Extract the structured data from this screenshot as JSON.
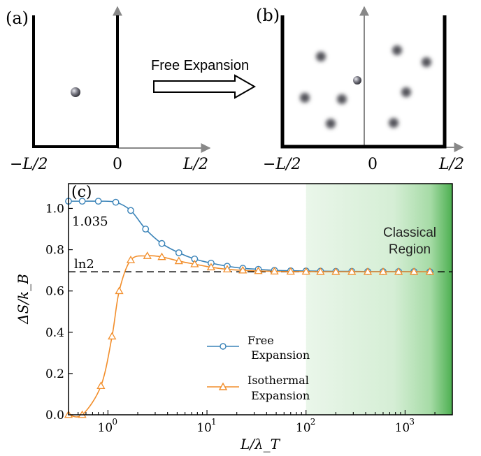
{
  "panel_a": {
    "label": "(a)",
    "tick_left": "−L/2",
    "tick_zero": "0",
    "tick_right": "L/2"
  },
  "arrow": {
    "label": "Free Expansion"
  },
  "panel_b": {
    "label": "(b)",
    "tick_left": "−L/2",
    "tick_zero": "0",
    "tick_right": "L/2"
  },
  "colors": {
    "free": "#3a83b8",
    "isothermal": "#f28e2b",
    "region_green": "#4caf50",
    "ball": "#6c6c74"
  },
  "chart_data": {
    "type": "line",
    "panel_label": "(c)",
    "xlabel": "L/λ_T",
    "ylabel": "ΔS/k_B",
    "x_scale": "log",
    "xlim": [
      0.4,
      3000
    ],
    "ylim": [
      0,
      1.12
    ],
    "x_ticks": [
      {
        "value": 1,
        "label": "10",
        "exp": "0"
      },
      {
        "value": 10,
        "label": "10",
        "exp": "1"
      },
      {
        "value": 100,
        "label": "10",
        "exp": "2"
      },
      {
        "value": 1000,
        "label": "10",
        "exp": "3"
      }
    ],
    "y_ticks": [
      {
        "value": 0,
        "label": "0.0"
      },
      {
        "value": 0.2,
        "label": "0.2"
      },
      {
        "value": 0.4,
        "label": "0.4"
      },
      {
        "value": 0.6,
        "label": "0.6"
      },
      {
        "value": 0.8,
        "label": "0.8"
      },
      {
        "value": 1.0,
        "label": "1.0"
      }
    ],
    "reference_line": {
      "y": 0.693,
      "label": "ln2"
    },
    "annotation": {
      "text": "1.035",
      "x": 0.42,
      "y": 0.95
    },
    "shaded_region": {
      "label_line1": "Classical",
      "label_line2": "Region",
      "x_start": 100,
      "x_end": 3000
    },
    "legend_position": "lower-center",
    "series": [
      {
        "name": "Free\n Expansion",
        "legend_line1": "Free",
        "legend_line2": " Expansion",
        "marker": "circle",
        "color": "#3a83b8",
        "points": [
          [
            0.4,
            1.035
          ],
          [
            0.55,
            1.035
          ],
          [
            0.8,
            1.035
          ],
          [
            1.2,
            1.03
          ],
          [
            1.7,
            0.99
          ],
          [
            2.4,
            0.9
          ],
          [
            3.5,
            0.83
          ],
          [
            5.2,
            0.785
          ],
          [
            7.5,
            0.755
          ],
          [
            11,
            0.735
          ],
          [
            16,
            0.72
          ],
          [
            23,
            0.71
          ],
          [
            33,
            0.705
          ],
          [
            48,
            0.7
          ],
          [
            70,
            0.698
          ],
          [
            100,
            0.697
          ],
          [
            140,
            0.696
          ],
          [
            200,
            0.695
          ],
          [
            290,
            0.695
          ],
          [
            420,
            0.694
          ],
          [
            600,
            0.694
          ],
          [
            860,
            0.694
          ],
          [
            1230,
            0.694
          ],
          [
            1780,
            0.693
          ]
        ]
      },
      {
        "name": "Isothermal\n Expansion",
        "legend_line1": "Isothermal",
        "legend_line2": " Expansion",
        "marker": "triangle",
        "color": "#f28e2b",
        "points": [
          [
            0.4,
            0.0
          ],
          [
            0.55,
            0.0
          ],
          [
            0.85,
            0.14
          ],
          [
            1.1,
            0.38
          ],
          [
            1.3,
            0.6
          ],
          [
            1.7,
            0.75
          ],
          [
            2.5,
            0.77
          ],
          [
            3.5,
            0.765
          ],
          [
            5.2,
            0.745
          ],
          [
            7.5,
            0.73
          ],
          [
            11,
            0.715
          ],
          [
            16,
            0.705
          ],
          [
            23,
            0.7
          ],
          [
            33,
            0.697
          ],
          [
            48,
            0.695
          ],
          [
            70,
            0.694
          ],
          [
            100,
            0.694
          ],
          [
            140,
            0.693
          ],
          [
            200,
            0.693
          ],
          [
            290,
            0.693
          ],
          [
            420,
            0.693
          ],
          [
            600,
            0.693
          ],
          [
            860,
            0.693
          ],
          [
            1230,
            0.693
          ],
          [
            1780,
            0.693
          ]
        ]
      }
    ]
  }
}
